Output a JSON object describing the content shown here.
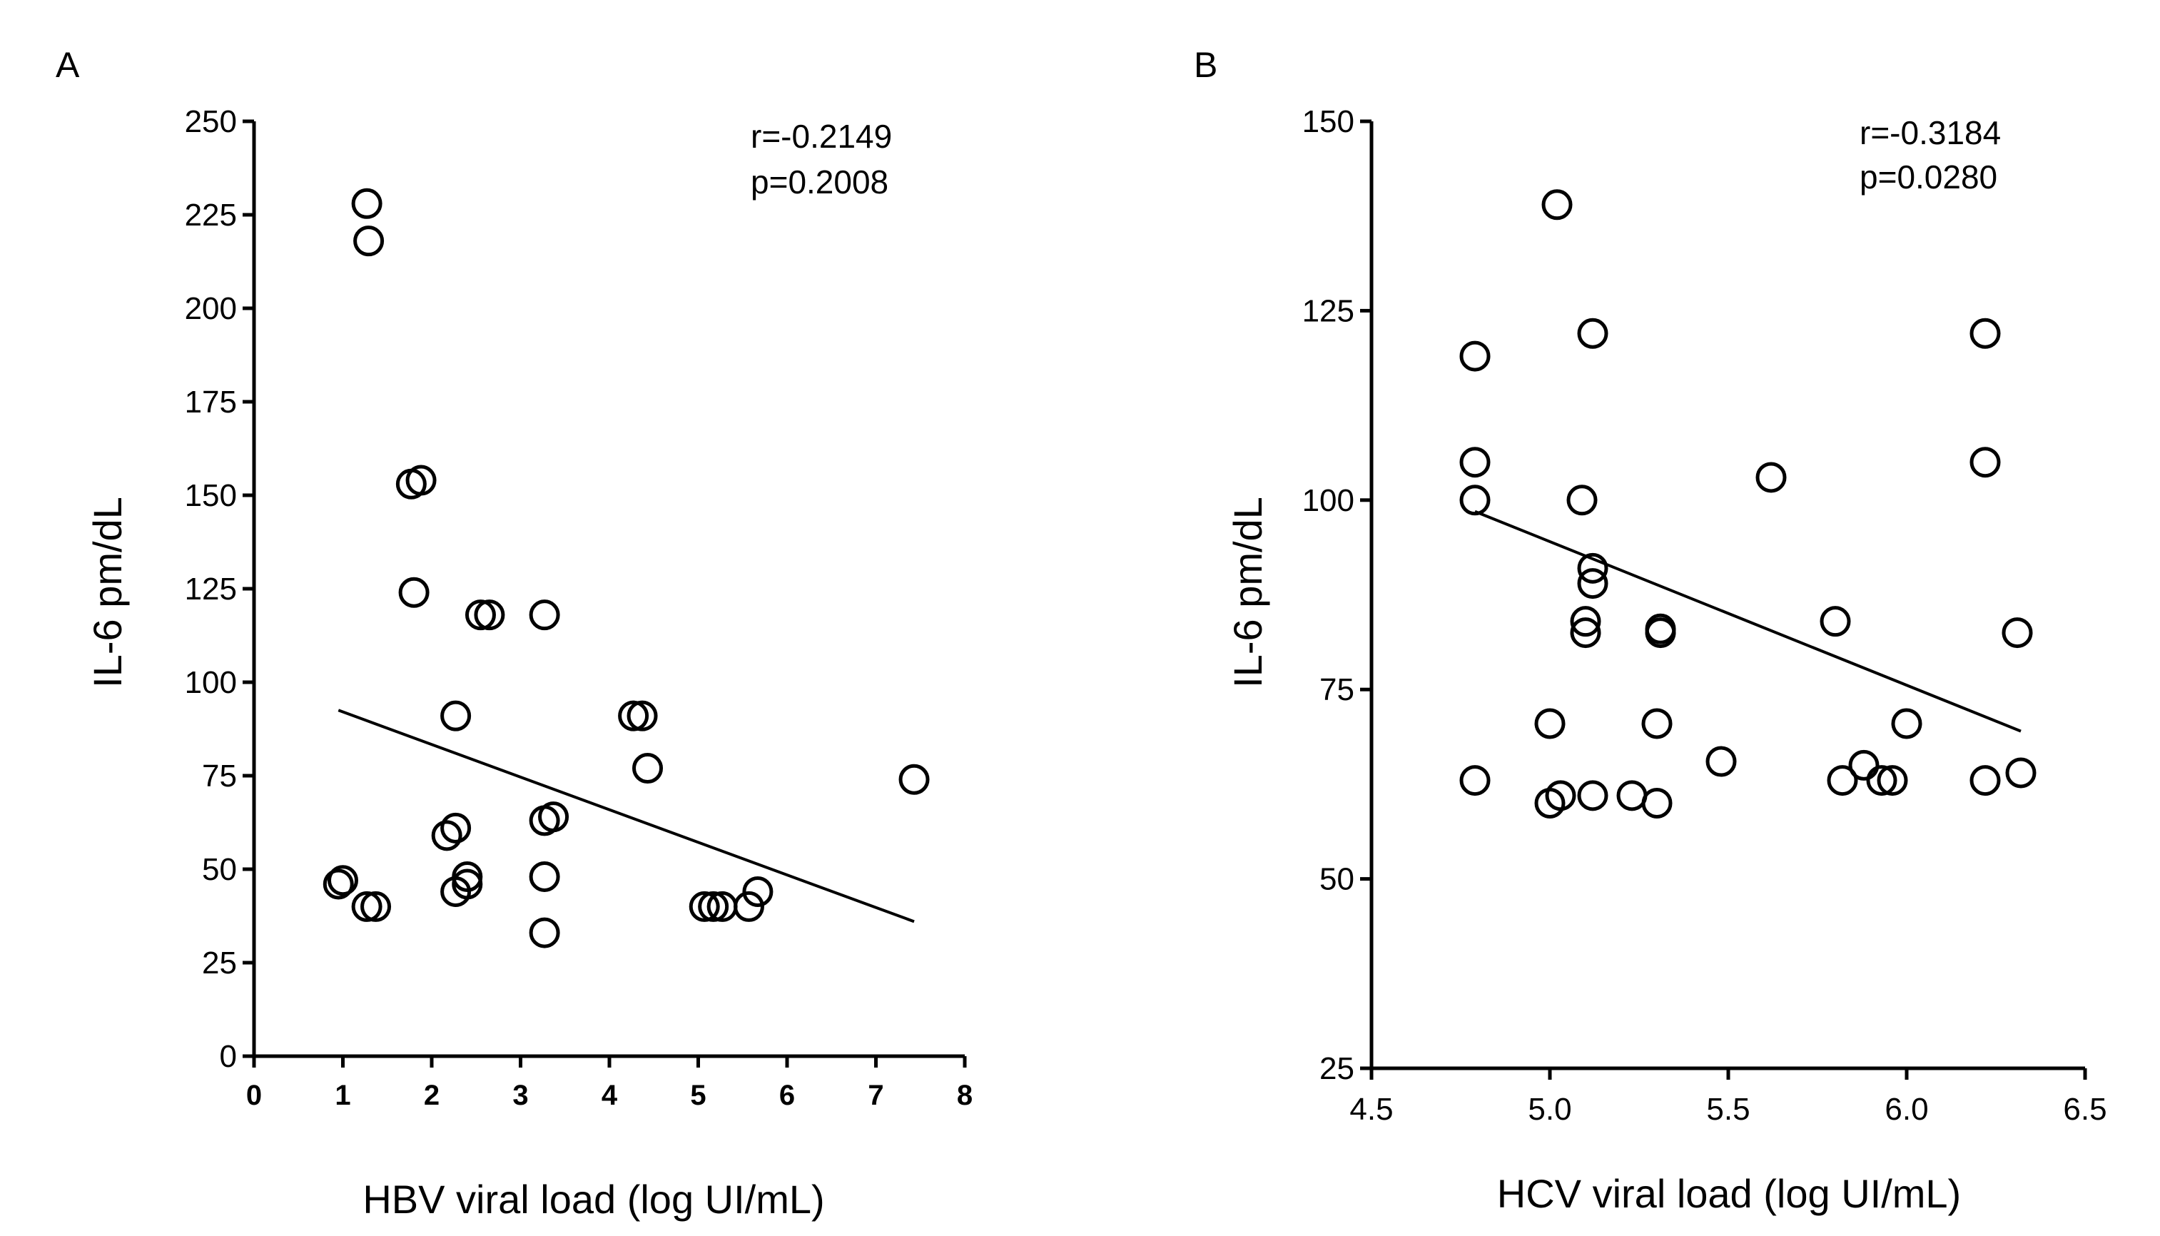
{
  "chart_data": [
    {
      "type": "scatter",
      "panel_label": "A",
      "xlabel": "HBV viral load (log UI/mL)",
      "ylabel": "IL-6 pm/dL",
      "xlim": [
        0,
        8
      ],
      "ylim": [
        0,
        250
      ],
      "xticks": [
        0,
        1,
        2,
        3,
        4,
        5,
        6,
        7,
        8
      ],
      "xtick_labels": [
        "0",
        "1",
        "2",
        "3",
        "4",
        "5",
        "6",
        "7",
        "8"
      ],
      "yticks": [
        0,
        25,
        50,
        75,
        100,
        125,
        150,
        175,
        200,
        225,
        250
      ],
      "ytick_labels": [
        "0",
        "25",
        "50",
        "75",
        "100",
        "125",
        "150",
        "175",
        "200",
        "225",
        "250"
      ],
      "annotation": [
        "r=-0.2149",
        "p=0.2008"
      ],
      "points": [
        [
          1.27,
          228
        ],
        [
          1.29,
          218
        ],
        [
          1.77,
          153
        ],
        [
          1.88,
          154
        ],
        [
          1.8,
          124
        ],
        [
          2.55,
          118
        ],
        [
          2.65,
          118
        ],
        [
          3.27,
          118
        ],
        [
          2.27,
          91
        ],
        [
          4.27,
          91
        ],
        [
          4.37,
          91
        ],
        [
          4.43,
          77
        ],
        [
          7.43,
          74
        ],
        [
          3.27,
          63
        ],
        [
          3.37,
          64
        ],
        [
          2.17,
          59
        ],
        [
          2.27,
          61
        ],
        [
          2.4,
          48
        ],
        [
          2.27,
          44
        ],
        [
          2.4,
          46
        ],
        [
          3.27,
          48
        ],
        [
          0.95,
          46
        ],
        [
          1.0,
          47
        ],
        [
          1.27,
          40
        ],
        [
          1.37,
          40
        ],
        [
          3.27,
          33
        ],
        [
          5.07,
          40
        ],
        [
          5.17,
          40
        ],
        [
          5.27,
          40
        ],
        [
          5.57,
          40
        ],
        [
          5.67,
          44
        ]
      ],
      "regression": {
        "x": [
          0.95,
          7.43
        ],
        "y": [
          92.5,
          36
        ]
      }
    },
    {
      "type": "scatter",
      "panel_label": "B",
      "xlabel": "HCV viral load (log UI/mL)",
      "ylabel": "IL-6 pm/dL",
      "xlim": [
        4.5,
        6.5
      ],
      "ylim": [
        25,
        150
      ],
      "xticks": [
        4.5,
        5.0,
        5.5,
        6.0,
        6.5
      ],
      "xtick_labels": [
        "4.5",
        "5.0",
        "5.5",
        "6.0",
        "6.5"
      ],
      "yticks": [
        25,
        50,
        75,
        100,
        125,
        150
      ],
      "ytick_labels": [
        "25",
        "50",
        "75",
        "100",
        "125",
        "150"
      ],
      "annotation": [
        "r=-0.3184",
        "p=0.0280"
      ],
      "points": [
        [
          5.02,
          139
        ],
        [
          5.12,
          122
        ],
        [
          6.22,
          122
        ],
        [
          4.79,
          119
        ],
        [
          4.79,
          105
        ],
        [
          6.22,
          105
        ],
        [
          4.79,
          100
        ],
        [
          5.09,
          100
        ],
        [
          5.62,
          103
        ],
        [
          5.12,
          91
        ],
        [
          5.12,
          89
        ],
        [
          5.1,
          84
        ],
        [
          5.1,
          82.5
        ],
        [
          5.31,
          83
        ],
        [
          5.31,
          82.5
        ],
        [
          5.8,
          84
        ],
        [
          6.31,
          82.5
        ],
        [
          5.0,
          70.5
        ],
        [
          5.3,
          70.5
        ],
        [
          6.0,
          70.5
        ],
        [
          5.48,
          65.5
        ],
        [
          4.79,
          63
        ],
        [
          5.82,
          63
        ],
        [
          5.88,
          65
        ],
        [
          5.93,
          63
        ],
        [
          5.96,
          63
        ],
        [
          6.22,
          63
        ],
        [
          6.32,
          64
        ],
        [
          5.0,
          60
        ],
        [
          5.03,
          61
        ],
        [
          5.12,
          61
        ],
        [
          5.23,
          61
        ],
        [
          5.3,
          60
        ]
      ],
      "regression": {
        "x": [
          4.79,
          6.32
        ],
        "y": [
          98.5,
          69.5
        ]
      }
    }
  ]
}
